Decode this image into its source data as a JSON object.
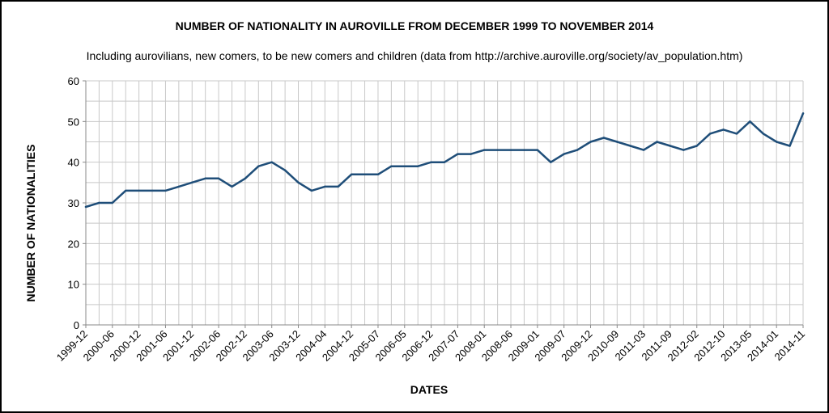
{
  "chart_data": {
    "type": "line",
    "title": "NUMBER OF NATIONALITY IN AUROVILLE FROM DECEMBER 1999 TO NOVEMBER 2014",
    "subtitle": "Including aurovilians, new comers, to be new comers and children (data from http://archive.auroville.org/society/av_population.htm)",
    "xlabel": "DATES",
    "ylabel": "NUMBER OF NATIONALITIES",
    "ylim": [
      0,
      60
    ],
    "yticks": [
      0,
      10,
      20,
      30,
      40,
      50,
      60
    ],
    "grid": true,
    "x_tick_labels": [
      "1999-12",
      "2000-06",
      "2000-12",
      "2001-06",
      "2001-12",
      "2002-06",
      "2002-12",
      "2003-06",
      "2003-12",
      "2004-04",
      "2004-12",
      "2005-07",
      "2006-05",
      "2006-12",
      "2007-07",
      "2008-01",
      "2008-06",
      "2009-01",
      "2009-07",
      "2009-12",
      "2010-09",
      "2011-03",
      "2011-09",
      "2012-02",
      "2012-10",
      "2013-05",
      "2014-01",
      "2014-11"
    ],
    "series": [
      {
        "name": "Nationalities",
        "color": "#1f4e79",
        "values": [
          29,
          30,
          30,
          33,
          33,
          33,
          33,
          34,
          35,
          36,
          36,
          34,
          36,
          39,
          40,
          38,
          35,
          33,
          34,
          34,
          37,
          37,
          37,
          39,
          39,
          39,
          40,
          40,
          42,
          42,
          43,
          43,
          43,
          43,
          43,
          40,
          42,
          43,
          45,
          46,
          45,
          44,
          43,
          45,
          44,
          43,
          44,
          47,
          48,
          47,
          50,
          47,
          45,
          44,
          52
        ]
      }
    ]
  }
}
